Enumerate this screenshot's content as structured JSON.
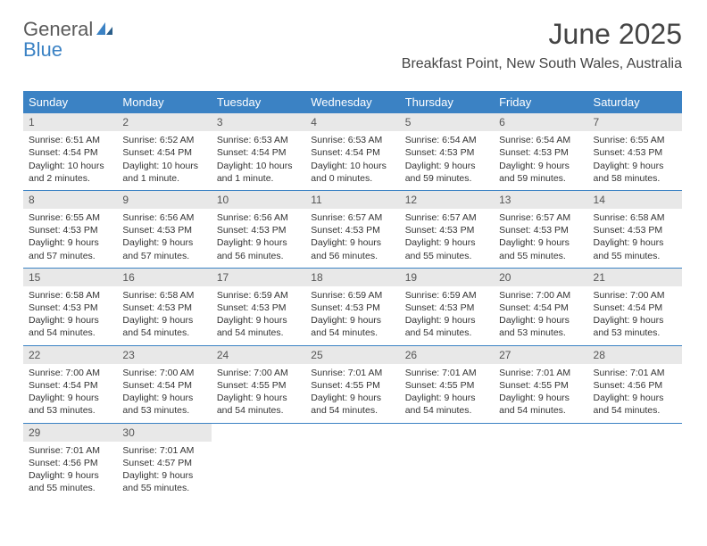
{
  "brand": {
    "part1": "General",
    "part2": "Blue"
  },
  "title": "June 2025",
  "location": "Breakfast Point, New South Wales, Australia",
  "colors": {
    "header_bg": "#3b82c4",
    "header_text": "#ffffff",
    "daynum_bg": "#e8e8e8",
    "body_text": "#333333",
    "rule": "#3b82c4"
  },
  "day_headers": [
    "Sunday",
    "Monday",
    "Tuesday",
    "Wednesday",
    "Thursday",
    "Friday",
    "Saturday"
  ],
  "weeks": [
    [
      {
        "n": "1",
        "sunrise": "Sunrise: 6:51 AM",
        "sunset": "Sunset: 4:54 PM",
        "daylight": "Daylight: 10 hours and 2 minutes."
      },
      {
        "n": "2",
        "sunrise": "Sunrise: 6:52 AM",
        "sunset": "Sunset: 4:54 PM",
        "daylight": "Daylight: 10 hours and 1 minute."
      },
      {
        "n": "3",
        "sunrise": "Sunrise: 6:53 AM",
        "sunset": "Sunset: 4:54 PM",
        "daylight": "Daylight: 10 hours and 1 minute."
      },
      {
        "n": "4",
        "sunrise": "Sunrise: 6:53 AM",
        "sunset": "Sunset: 4:54 PM",
        "daylight": "Daylight: 10 hours and 0 minutes."
      },
      {
        "n": "5",
        "sunrise": "Sunrise: 6:54 AM",
        "sunset": "Sunset: 4:53 PM",
        "daylight": "Daylight: 9 hours and 59 minutes."
      },
      {
        "n": "6",
        "sunrise": "Sunrise: 6:54 AM",
        "sunset": "Sunset: 4:53 PM",
        "daylight": "Daylight: 9 hours and 59 minutes."
      },
      {
        "n": "7",
        "sunrise": "Sunrise: 6:55 AM",
        "sunset": "Sunset: 4:53 PM",
        "daylight": "Daylight: 9 hours and 58 minutes."
      }
    ],
    [
      {
        "n": "8",
        "sunrise": "Sunrise: 6:55 AM",
        "sunset": "Sunset: 4:53 PM",
        "daylight": "Daylight: 9 hours and 57 minutes."
      },
      {
        "n": "9",
        "sunrise": "Sunrise: 6:56 AM",
        "sunset": "Sunset: 4:53 PM",
        "daylight": "Daylight: 9 hours and 57 minutes."
      },
      {
        "n": "10",
        "sunrise": "Sunrise: 6:56 AM",
        "sunset": "Sunset: 4:53 PM",
        "daylight": "Daylight: 9 hours and 56 minutes."
      },
      {
        "n": "11",
        "sunrise": "Sunrise: 6:57 AM",
        "sunset": "Sunset: 4:53 PM",
        "daylight": "Daylight: 9 hours and 56 minutes."
      },
      {
        "n": "12",
        "sunrise": "Sunrise: 6:57 AM",
        "sunset": "Sunset: 4:53 PM",
        "daylight": "Daylight: 9 hours and 55 minutes."
      },
      {
        "n": "13",
        "sunrise": "Sunrise: 6:57 AM",
        "sunset": "Sunset: 4:53 PM",
        "daylight": "Daylight: 9 hours and 55 minutes."
      },
      {
        "n": "14",
        "sunrise": "Sunrise: 6:58 AM",
        "sunset": "Sunset: 4:53 PM",
        "daylight": "Daylight: 9 hours and 55 minutes."
      }
    ],
    [
      {
        "n": "15",
        "sunrise": "Sunrise: 6:58 AM",
        "sunset": "Sunset: 4:53 PM",
        "daylight": "Daylight: 9 hours and 54 minutes."
      },
      {
        "n": "16",
        "sunrise": "Sunrise: 6:58 AM",
        "sunset": "Sunset: 4:53 PM",
        "daylight": "Daylight: 9 hours and 54 minutes."
      },
      {
        "n": "17",
        "sunrise": "Sunrise: 6:59 AM",
        "sunset": "Sunset: 4:53 PM",
        "daylight": "Daylight: 9 hours and 54 minutes."
      },
      {
        "n": "18",
        "sunrise": "Sunrise: 6:59 AM",
        "sunset": "Sunset: 4:53 PM",
        "daylight": "Daylight: 9 hours and 54 minutes."
      },
      {
        "n": "19",
        "sunrise": "Sunrise: 6:59 AM",
        "sunset": "Sunset: 4:53 PM",
        "daylight": "Daylight: 9 hours and 54 minutes."
      },
      {
        "n": "20",
        "sunrise": "Sunrise: 7:00 AM",
        "sunset": "Sunset: 4:54 PM",
        "daylight": "Daylight: 9 hours and 53 minutes."
      },
      {
        "n": "21",
        "sunrise": "Sunrise: 7:00 AM",
        "sunset": "Sunset: 4:54 PM",
        "daylight": "Daylight: 9 hours and 53 minutes."
      }
    ],
    [
      {
        "n": "22",
        "sunrise": "Sunrise: 7:00 AM",
        "sunset": "Sunset: 4:54 PM",
        "daylight": "Daylight: 9 hours and 53 minutes."
      },
      {
        "n": "23",
        "sunrise": "Sunrise: 7:00 AM",
        "sunset": "Sunset: 4:54 PM",
        "daylight": "Daylight: 9 hours and 53 minutes."
      },
      {
        "n": "24",
        "sunrise": "Sunrise: 7:00 AM",
        "sunset": "Sunset: 4:55 PM",
        "daylight": "Daylight: 9 hours and 54 minutes."
      },
      {
        "n": "25",
        "sunrise": "Sunrise: 7:01 AM",
        "sunset": "Sunset: 4:55 PM",
        "daylight": "Daylight: 9 hours and 54 minutes."
      },
      {
        "n": "26",
        "sunrise": "Sunrise: 7:01 AM",
        "sunset": "Sunset: 4:55 PM",
        "daylight": "Daylight: 9 hours and 54 minutes."
      },
      {
        "n": "27",
        "sunrise": "Sunrise: 7:01 AM",
        "sunset": "Sunset: 4:55 PM",
        "daylight": "Daylight: 9 hours and 54 minutes."
      },
      {
        "n": "28",
        "sunrise": "Sunrise: 7:01 AM",
        "sunset": "Sunset: 4:56 PM",
        "daylight": "Daylight: 9 hours and 54 minutes."
      }
    ],
    [
      {
        "n": "29",
        "sunrise": "Sunrise: 7:01 AM",
        "sunset": "Sunset: 4:56 PM",
        "daylight": "Daylight: 9 hours and 55 minutes."
      },
      {
        "n": "30",
        "sunrise": "Sunrise: 7:01 AM",
        "sunset": "Sunset: 4:57 PM",
        "daylight": "Daylight: 9 hours and 55 minutes."
      },
      null,
      null,
      null,
      null,
      null
    ]
  ]
}
